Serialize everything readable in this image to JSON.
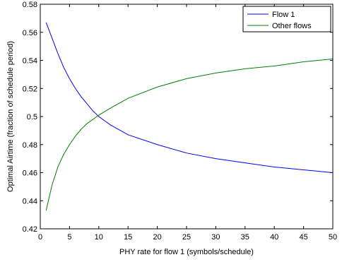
{
  "chart_data": {
    "type": "line",
    "xlabel": "PHY rate for flow 1 (symbols/schedule)",
    "ylabel": "Optimal Airtime (fraction of schedule period)",
    "xlim": [
      0,
      50
    ],
    "ylim": [
      0.42,
      0.58
    ],
    "xticks": [
      "0",
      "5",
      "10",
      "15",
      "20",
      "25",
      "30",
      "35",
      "40",
      "45",
      "50"
    ],
    "yticks": [
      "0.42",
      "0.44",
      "0.46",
      "0.48",
      "0.5",
      "0.52",
      "0.54",
      "0.56",
      "0.58"
    ],
    "grid": false,
    "legend_position": "top-right",
    "series": [
      {
        "name": "Flow 1",
        "color": "#0000ff",
        "x": [
          1,
          2,
          3,
          4,
          5,
          6,
          7,
          8,
          9,
          10,
          12,
          15,
          20,
          25,
          30,
          35,
          40,
          45,
          50
        ],
        "y": [
          0.567,
          0.556,
          0.545,
          0.535,
          0.527,
          0.52,
          0.514,
          0.509,
          0.504,
          0.5,
          0.494,
          0.487,
          0.48,
          0.474,
          0.47,
          0.467,
          0.464,
          0.462,
          0.46
        ]
      },
      {
        "name": "Other flows",
        "color": "#008000",
        "x": [
          1,
          2,
          3,
          4,
          5,
          6,
          7,
          8,
          9,
          10,
          12,
          15,
          20,
          25,
          30,
          35,
          40,
          45,
          50
        ],
        "y": [
          0.433,
          0.451,
          0.464,
          0.473,
          0.48,
          0.486,
          0.491,
          0.495,
          0.498,
          0.501,
          0.506,
          0.513,
          0.521,
          0.527,
          0.531,
          0.534,
          0.536,
          0.539,
          0.541
        ]
      }
    ]
  }
}
